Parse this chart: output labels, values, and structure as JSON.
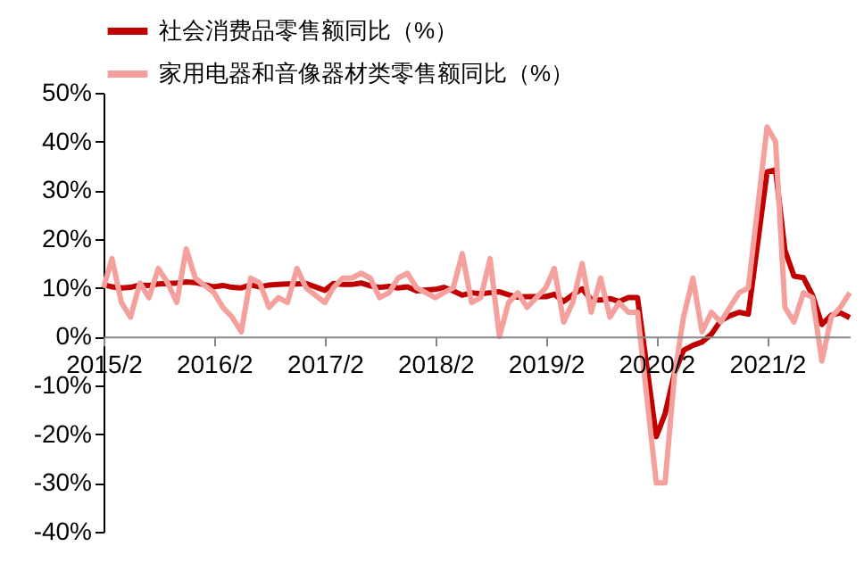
{
  "chart_data": {
    "type": "line",
    "x": [
      "2015-02",
      "2015-03",
      "2015-04",
      "2015-05",
      "2015-06",
      "2015-07",
      "2015-08",
      "2015-09",
      "2015-10",
      "2015-11",
      "2015-12",
      "2016-02",
      "2016-03",
      "2016-04",
      "2016-05",
      "2016-06",
      "2016-07",
      "2016-08",
      "2016-09",
      "2016-10",
      "2016-11",
      "2016-12",
      "2017-02",
      "2017-03",
      "2017-04",
      "2017-05",
      "2017-06",
      "2017-07",
      "2017-08",
      "2017-09",
      "2017-10",
      "2017-11",
      "2017-12",
      "2018-02",
      "2018-03",
      "2018-04",
      "2018-05",
      "2018-06",
      "2018-07",
      "2018-08",
      "2018-09",
      "2018-10",
      "2018-11",
      "2018-12",
      "2019-02",
      "2019-03",
      "2019-04",
      "2019-05",
      "2019-06",
      "2019-07",
      "2019-08",
      "2019-09",
      "2019-10",
      "2019-11",
      "2019-12",
      "2020-02",
      "2020-03",
      "2020-04",
      "2020-05",
      "2020-06",
      "2020-07",
      "2020-08",
      "2020-09",
      "2020-10",
      "2020-11",
      "2020-12",
      "2021-02",
      "2021-03",
      "2021-04",
      "2021-05",
      "2021-06",
      "2021-07",
      "2021-08",
      "2021-09",
      "2021-10",
      "2021-11"
    ],
    "series": [
      {
        "name": "社会消费品零售额同比（%）",
        "color": "#c00000",
        "values": [
          10.7,
          10.2,
          10.0,
          10.1,
          10.6,
          10.5,
          10.8,
          10.9,
          11.0,
          11.2,
          11.1,
          10.2,
          10.5,
          10.1,
          10.0,
          10.6,
          10.2,
          10.6,
          10.7,
          10.8,
          10.8,
          10.9,
          9.5,
          10.9,
          10.7,
          10.7,
          11.0,
          10.4,
          10.1,
          10.3,
          10.0,
          10.2,
          9.4,
          9.7,
          10.1,
          9.4,
          8.5,
          9.0,
          8.8,
          9.0,
          9.2,
          8.6,
          8.1,
          8.2,
          8.2,
          8.7,
          7.2,
          8.6,
          9.8,
          7.6,
          7.5,
          7.8,
          7.2,
          8.0,
          8.0,
          -20.5,
          -15.8,
          -7.5,
          -2.8,
          -1.8,
          -1.1,
          0.5,
          3.3,
          4.3,
          5.0,
          4.6,
          33.8,
          34.2,
          17.7,
          12.4,
          12.1,
          8.5,
          2.5,
          4.4,
          4.9,
          3.9
        ]
      },
      {
        "name": "家用电器和音像器材类零售额同比（%）",
        "color": "#f4a09c",
        "values": [
          10,
          16,
          7,
          4,
          11,
          8,
          14,
          11,
          7,
          18,
          12,
          9,
          6,
          4,
          1,
          12,
          11,
          6,
          8,
          7,
          14,
          10,
          7,
          10,
          12,
          12,
          13,
          12,
          8,
          9,
          12,
          13,
          10,
          8,
          9,
          10,
          17,
          7,
          8,
          16,
          0,
          7,
          9,
          6,
          10,
          14,
          3,
          7,
          15,
          5,
          12,
          4,
          7,
          5,
          5,
          -30,
          -30,
          -8,
          4,
          12,
          1,
          5,
          3,
          6,
          9,
          10,
          43,
          40,
          6,
          3,
          9,
          8,
          -5,
          4,
          6,
          9
        ]
      }
    ],
    "xlim": [
      "2015-02",
      "2021-11"
    ],
    "xticks": [
      {
        "value": "2015-02",
        "label": "2015/2"
      },
      {
        "value": "2016-02",
        "label": "2016/2"
      },
      {
        "value": "2017-02",
        "label": "2017/2"
      },
      {
        "value": "2018-02",
        "label": "2018/2"
      },
      {
        "value": "2019-02",
        "label": "2019/2"
      },
      {
        "value": "2020-02",
        "label": "2020/2"
      },
      {
        "value": "2021-02",
        "label": "2021/2"
      }
    ],
    "ylim": [
      -40,
      50
    ],
    "yticks": [
      {
        "value": -40,
        "label": "-40%"
      },
      {
        "value": -30,
        "label": "-30%"
      },
      {
        "value": -20,
        "label": "-20%"
      },
      {
        "value": -10,
        "label": "-10%"
      },
      {
        "value": 0,
        "label": "0%"
      },
      {
        "value": 10,
        "label": "10%"
      },
      {
        "value": 20,
        "label": "20%"
      },
      {
        "value": 30,
        "label": "30%"
      },
      {
        "value": 40,
        "label": "40%"
      },
      {
        "value": 50,
        "label": "50%"
      }
    ],
    "legend": "top",
    "grid": false
  }
}
